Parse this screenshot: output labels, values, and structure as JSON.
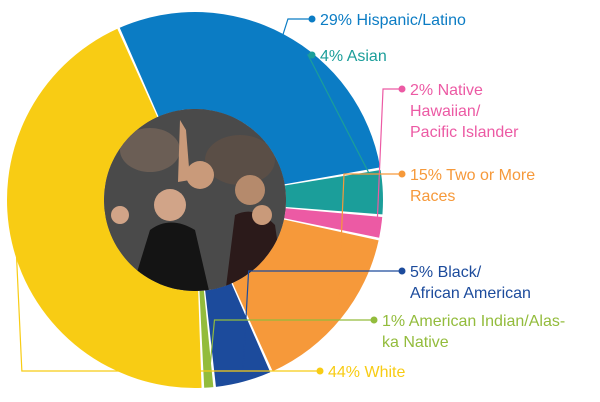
{
  "chart_data": {
    "type": "pie",
    "variant": "donut",
    "title": "",
    "slices": [
      {
        "label": "29% Hispanic/Latino",
        "lines": [
          "29% Hispanic/Latino"
        ],
        "value": 29,
        "color": "#0b7cc4"
      },
      {
        "label": "4% Asian",
        "lines": [
          "4% Asian"
        ],
        "value": 4,
        "color": "#1b9e9a"
      },
      {
        "label": "2% Native Hawaiian/ Pacific Islander",
        "lines": [
          "2% Native",
          "Hawaiian/",
          "Pacific Islander"
        ],
        "value": 2,
        "color": "#ec5aa4"
      },
      {
        "label": "15% Two or More Races",
        "lines": [
          "15% Two or More",
          "Races"
        ],
        "value": 15,
        "color": "#f6993a"
      },
      {
        "label": "5% Black/ African American",
        "lines": [
          "5% Black/",
          "African American"
        ],
        "value": 5,
        "color": "#1c4b9c"
      },
      {
        "label": "1% American Indian/Alaska Native",
        "lines": [
          "1% American Indian/Alas-",
          "ka Native"
        ],
        "value": 1,
        "color": "#93bc3c"
      },
      {
        "label": "44% White",
        "lines": [
          "44% White"
        ],
        "value": 44,
        "color": "#f8cc14"
      }
    ],
    "label_text_colors": [
      "#0b7cc4",
      "#1b9e9a",
      "#ec5aa4",
      "#f6993a",
      "#1c4b9c",
      "#93bc3c",
      "#f8cc14"
    ],
    "center_image": "students-cheering-photo",
    "legend": "none"
  }
}
